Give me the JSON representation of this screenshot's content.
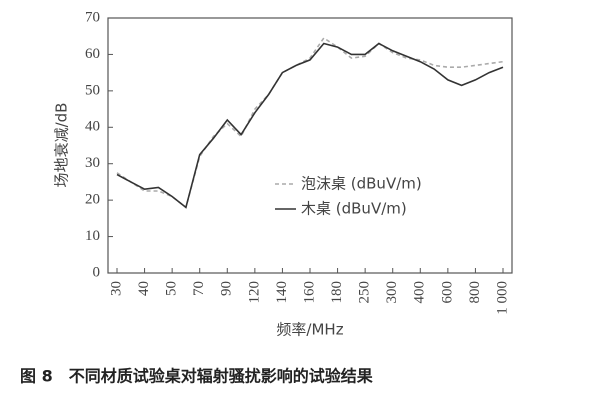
{
  "chart_data": {
    "type": "line",
    "caption": "图 8　不同材质试验桌对辐射骚扰影响的试验结果",
    "x_label": "频率/MHz",
    "y_label": "场地衰减/dB",
    "categories": [
      "30",
      null,
      "40",
      null,
      "50",
      null,
      "70",
      null,
      "90",
      null,
      "120",
      null,
      "140",
      null,
      "160",
      null,
      "180",
      null,
      "250",
      null,
      "300",
      null,
      "400",
      null,
      "600",
      null,
      "800",
      null,
      "1 000"
    ],
    "series": [
      {
        "name": "泡沫桌 (dBuV/m)",
        "color": "#aaaaaa",
        "dash": true,
        "values": [
          27.5,
          25,
          22.5,
          22.5,
          21,
          18,
          32,
          37.5,
          41,
          37.5,
          45,
          49,
          55,
          57,
          59,
          64.5,
          62,
          59,
          59.5,
          63,
          60.5,
          59,
          58.5,
          57,
          56.5,
          56.5,
          57,
          57.5,
          58
        ]
      },
      {
        "name": "木桌 (dBuV/m)",
        "color": "#333333",
        "dash": false,
        "values": [
          27,
          25,
          23,
          23.5,
          21,
          18,
          32.5,
          37,
          42,
          38,
          44,
          49,
          55,
          57,
          58.5,
          63,
          62,
          60,
          60,
          63,
          61,
          59.5,
          58,
          56,
          53,
          51.5,
          53,
          55,
          56.5
        ]
      }
    ],
    "ylim": [
      0,
      70
    ],
    "yticks": [
      0,
      10,
      20,
      30,
      40,
      50,
      60,
      70
    ]
  }
}
